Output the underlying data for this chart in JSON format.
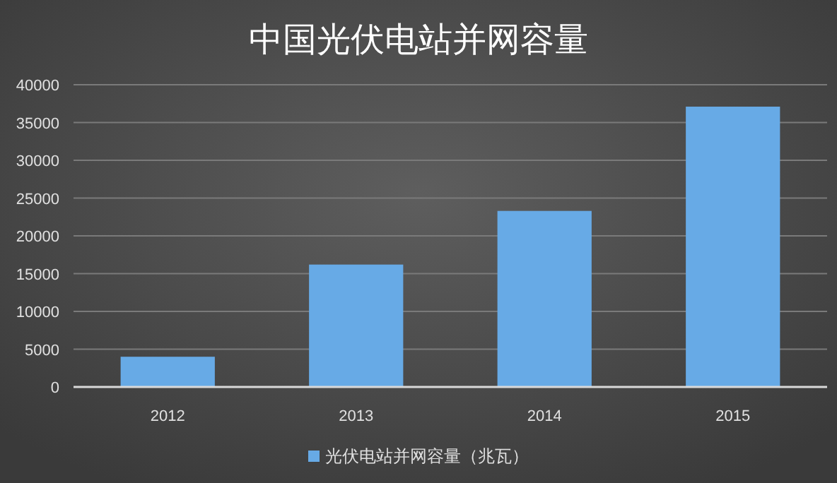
{
  "chart_data": {
    "type": "bar",
    "title": "中国光伏电站并网容量",
    "categories": [
      "2012",
      "2013",
      "2014",
      "2015"
    ],
    "series": [
      {
        "name": "光伏电站并网容量（兆瓦）",
        "color": "#67aae6",
        "values": [
          4000,
          16200,
          23300,
          37100
        ]
      }
    ],
    "ylim": [
      0,
      40000
    ],
    "yticks": [
      0,
      5000,
      10000,
      15000,
      20000,
      25000,
      30000,
      35000,
      40000
    ],
    "grid": "y",
    "legend": "bottom"
  }
}
